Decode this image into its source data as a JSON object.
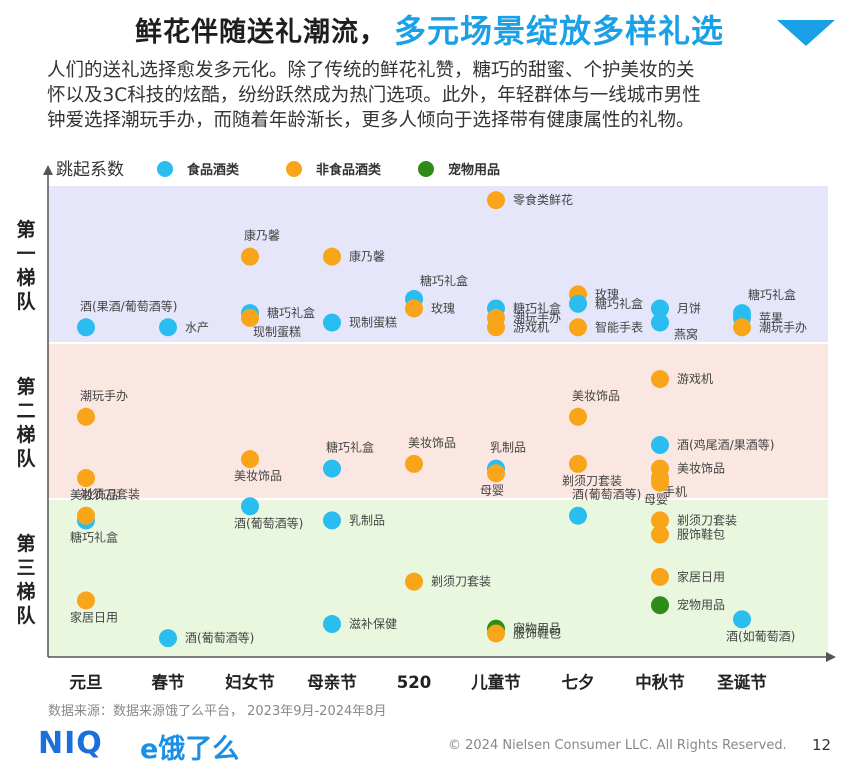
{
  "header": {
    "title_part1": "鲜花伴随送礼潮流，",
    "title_part2": "多元场景绽放多样礼选",
    "intro_lines": [
      "人们的送礼选择愈发多元化。除了传统的鲜花礼赞，糖巧的甜蜜、个护美妆的关",
      "怀以及3C科技的炫酷，纷纷跃然成为热门选项。此外，年轻群体与一线城市男性",
      "钟爱选择潮玩手办，而随着年龄渐长，更多人倾向于选择带有健康属性的礼物。"
    ]
  },
  "colors": {
    "food": "#29bdf0",
    "nonfood": "#f9a51a",
    "pet": "#2e8b17",
    "tier1_bg": "#e6e6fa",
    "tier2_bg": "#fbe7e1",
    "tier3_bg": "#e9f7df",
    "title_accent": "#1aa0e6"
  },
  "chart_data": {
    "type": "scatter",
    "ylabel": "跳起系数",
    "legend": [
      {
        "key": "food",
        "label": "食品酒类"
      },
      {
        "key": "nonfood",
        "label": "非食品酒类"
      },
      {
        "key": "pet",
        "label": "宠物用品"
      }
    ],
    "legend_position": "top-left",
    "categories": [
      "元旦",
      "春节",
      "妇女节",
      "母亲节",
      "520",
      "儿童节",
      "七夕",
      "中秋节",
      "圣诞节"
    ],
    "tiers": [
      {
        "label": "第一梯队",
        "chars": [
          "第",
          "一",
          "梯",
          "队"
        ]
      },
      {
        "label": "第二梯队",
        "chars": [
          "第",
          "二",
          "梯",
          "队"
        ]
      },
      {
        "label": "第三梯队",
        "chars": [
          "第",
          "三",
          "梯",
          "队"
        ]
      }
    ],
    "y_scale": "tier position (top of tier 1 = 1.0, bottom of tier 3 = 0.0)",
    "points": [
      {
        "x": "元旦",
        "y": 0.7,
        "cat": "food",
        "label": "酒(果酒/葡萄酒等)",
        "pos": "above"
      },
      {
        "x": "元旦",
        "y": 0.51,
        "cat": "nonfood",
        "label": "潮玩手办",
        "pos": "above"
      },
      {
        "x": "元旦",
        "y": 0.38,
        "cat": "nonfood",
        "label": "美妆饰品",
        "pos": "below"
      },
      {
        "x": "元旦",
        "y": 0.29,
        "cat": "food",
        "label": "糖巧礼盒",
        "pos": "below"
      },
      {
        "x": "元旦",
        "y": 0.3,
        "cat": "nonfood",
        "label": "剃须刀套装",
        "pos": "above"
      },
      {
        "x": "元旦",
        "y": 0.12,
        "cat": "nonfood",
        "label": "家居日用",
        "pos": "below"
      },
      {
        "x": "春节",
        "y": 0.7,
        "cat": "food",
        "label": "水产",
        "pos": "right"
      },
      {
        "x": "春节",
        "y": 0.04,
        "cat": "food",
        "label": "酒(葡萄酒等)",
        "pos": "right"
      },
      {
        "x": "妇女节",
        "y": 0.85,
        "cat": "nonfood",
        "label": "康乃馨",
        "pos": "above"
      },
      {
        "x": "妇女节",
        "y": 0.73,
        "cat": "food",
        "label": "糖巧礼盒",
        "pos": "right"
      },
      {
        "x": "妇女节",
        "y": 0.72,
        "cat": "nonfood",
        "label": "现制蛋糕",
        "pos": "right2"
      },
      {
        "x": "妇女节",
        "y": 0.42,
        "cat": "nonfood",
        "label": "美妆饰品",
        "pos": "below"
      },
      {
        "x": "妇女节",
        "y": 0.32,
        "cat": "food",
        "label": "酒(葡萄酒等)",
        "pos": "below"
      },
      {
        "x": "母亲节",
        "y": 0.85,
        "cat": "nonfood",
        "label": "康乃馨",
        "pos": "right"
      },
      {
        "x": "母亲节",
        "y": 0.71,
        "cat": "food",
        "label": "现制蛋糕",
        "pos": "right"
      },
      {
        "x": "母亲节",
        "y": 0.4,
        "cat": "food",
        "label": "糖巧礼盒",
        "pos": "above"
      },
      {
        "x": "母亲节",
        "y": 0.29,
        "cat": "food",
        "label": "乳制品",
        "pos": "right"
      },
      {
        "x": "母亲节",
        "y": 0.07,
        "cat": "food",
        "label": "滋补保健",
        "pos": "right"
      },
      {
        "x": "520",
        "y": 0.76,
        "cat": "food",
        "label": "糖巧礼盒",
        "pos": "aboveright"
      },
      {
        "x": "520",
        "y": 0.74,
        "cat": "nonfood",
        "label": "玫瑰",
        "pos": "right"
      },
      {
        "x": "520",
        "y": 0.41,
        "cat": "nonfood",
        "label": "美妆饰品",
        "pos": "above"
      },
      {
        "x": "520",
        "y": 0.16,
        "cat": "nonfood",
        "label": "剃须刀套装",
        "pos": "right"
      },
      {
        "x": "儿童节",
        "y": 0.97,
        "cat": "nonfood",
        "label": "零食类鲜花",
        "pos": "right"
      },
      {
        "x": "儿童节",
        "y": 0.74,
        "cat": "food",
        "label": "糖巧礼盒",
        "pos": "right"
      },
      {
        "x": "儿童节",
        "y": 0.72,
        "cat": "nonfood",
        "label": "潮玩手办",
        "pos": "right"
      },
      {
        "x": "儿童节",
        "y": 0.7,
        "cat": "nonfood",
        "label": "游戏机",
        "pos": "right"
      },
      {
        "x": "儿童节",
        "y": 0.4,
        "cat": "food",
        "label": "乳制品",
        "pos": "above"
      },
      {
        "x": "儿童节",
        "y": 0.39,
        "cat": "nonfood",
        "label": "母婴",
        "pos": "below"
      },
      {
        "x": "儿童节",
        "y": 0.06,
        "cat": "pet",
        "label": "宠物用品",
        "pos": "right"
      },
      {
        "x": "儿童节",
        "y": 0.05,
        "cat": "nonfood",
        "label": "服饰鞋包",
        "pos": "right"
      },
      {
        "x": "七夕",
        "y": 0.77,
        "cat": "nonfood",
        "label": "玫瑰",
        "pos": "right"
      },
      {
        "x": "七夕",
        "y": 0.75,
        "cat": "food",
        "label": "糖巧礼盒",
        "pos": "right"
      },
      {
        "x": "七夕",
        "y": 0.7,
        "cat": "nonfood",
        "label": "智能手表",
        "pos": "right"
      },
      {
        "x": "七夕",
        "y": 0.51,
        "cat": "nonfood",
        "label": "美妆饰品",
        "pos": "above"
      },
      {
        "x": "七夕",
        "y": 0.41,
        "cat": "nonfood",
        "label": "剃须刀套装",
        "pos": "below"
      },
      {
        "x": "七夕",
        "y": 0.3,
        "cat": "food",
        "label": "酒(葡萄酒等)",
        "pos": "above"
      },
      {
        "x": "中秋节",
        "y": 0.74,
        "cat": "food",
        "label": "月饼",
        "pos": "right"
      },
      {
        "x": "中秋节",
        "y": 0.71,
        "cat": "food",
        "label": "燕窝",
        "pos": "belowright"
      },
      {
        "x": "中秋节",
        "y": 0.59,
        "cat": "nonfood",
        "label": "游戏机",
        "pos": "right"
      },
      {
        "x": "中秋节",
        "y": 0.45,
        "cat": "food",
        "label": "酒(鸡尾酒/果酒等)",
        "pos": "right"
      },
      {
        "x": "中秋节",
        "y": 0.4,
        "cat": "nonfood",
        "label": "美妆饰品",
        "pos": "right"
      },
      {
        "x": "中秋节",
        "y": 0.38,
        "cat": "nonfood",
        "label": "手机",
        "pos": "right2"
      },
      {
        "x": "中秋节",
        "y": 0.37,
        "cat": "nonfood",
        "label": "母婴",
        "pos": "below"
      },
      {
        "x": "中秋节",
        "y": 0.29,
        "cat": "nonfood",
        "label": "剃须刀套装",
        "pos": "right"
      },
      {
        "x": "中秋节",
        "y": 0.26,
        "cat": "nonfood",
        "label": "服饰鞋包",
        "pos": "right"
      },
      {
        "x": "中秋节",
        "y": 0.17,
        "cat": "nonfood",
        "label": "家居日用",
        "pos": "right"
      },
      {
        "x": "中秋节",
        "y": 0.11,
        "cat": "pet",
        "label": "宠物用品",
        "pos": "right"
      },
      {
        "x": "圣诞节",
        "y": 0.73,
        "cat": "food",
        "label": "糖巧礼盒",
        "pos": "aboveright"
      },
      {
        "x": "圣诞节",
        "y": 0.72,
        "cat": "food",
        "label": "苹果",
        "pos": "right"
      },
      {
        "x": "圣诞节",
        "y": 0.7,
        "cat": "nonfood",
        "label": "潮玩手办",
        "pos": "right"
      },
      {
        "x": "圣诞节",
        "y": 0.08,
        "cat": "food",
        "label": "酒(如葡萄酒)",
        "pos": "below"
      }
    ]
  },
  "footer": {
    "source": "数据来源：数据来源饿了么平台， 2023年9月-2024年8月",
    "logo_niq": "NIQ",
    "logo_eleme": "e饿了么",
    "copyright": "© 2024 Nielsen Consumer LLC. All Rights Reserved.",
    "page_number": "12"
  }
}
